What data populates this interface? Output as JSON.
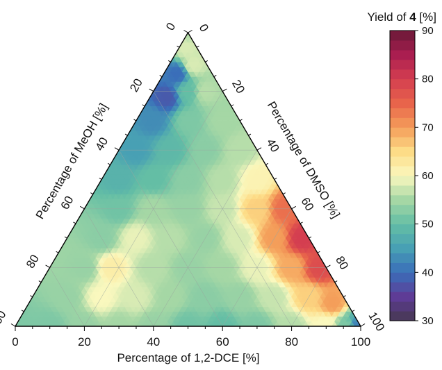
{
  "chart_data": {
    "type": "ternary-contour",
    "axes": {
      "bottom": {
        "label": "Percentage of 1,2-DCE [%]",
        "ticks": [
          "0",
          "20",
          "40",
          "60",
          "80",
          "100"
        ]
      },
      "left": {
        "label": "Percentage of MeOH [%]",
        "ticks": [
          "100",
          "80",
          "60",
          "40",
          "20",
          "0"
        ]
      },
      "right": {
        "label": "Percentage of DMSO [%]",
        "ticks": [
          "100",
          "80",
          "60",
          "40",
          "20",
          "0"
        ]
      }
    },
    "colorbar": {
      "title_prefix": "Yield of ",
      "title_bold": "4",
      "title_suffix": " [%]",
      "min": 30,
      "max": 90,
      "ticks": [
        "90",
        "80",
        "70",
        "60",
        "50",
        "40",
        "30"
      ]
    },
    "gridlines": true,
    "yield_samples": [
      {
        "dce": 0,
        "meoh": 100,
        "dmso": 0,
        "yield": 52
      },
      {
        "dce": 10,
        "meoh": 90,
        "dmso": 0,
        "yield": 52
      },
      {
        "dce": 20,
        "meoh": 80,
        "dmso": 0,
        "yield": 54
      },
      {
        "dce": 30,
        "meoh": 70,
        "dmso": 0,
        "yield": 55
      },
      {
        "dce": 40,
        "meoh": 60,
        "dmso": 0,
        "yield": 54
      },
      {
        "dce": 50,
        "meoh": 50,
        "dmso": 0,
        "yield": 51
      },
      {
        "dce": 60,
        "meoh": 40,
        "dmso": 0,
        "yield": 50
      },
      {
        "dce": 70,
        "meoh": 30,
        "dmso": 0,
        "yield": 52
      },
      {
        "dce": 80,
        "meoh": 20,
        "dmso": 0,
        "yield": 56
      },
      {
        "dce": 90,
        "meoh": 10,
        "dmso": 0,
        "yield": 60
      },
      {
        "dce": 96,
        "meoh": 4,
        "dmso": 0,
        "yield": 52
      },
      {
        "dce": 99,
        "meoh": 1,
        "dmso": 0,
        "yield": 42
      },
      {
        "dce": 10,
        "meoh": 80,
        "dmso": 10,
        "yield": 54
      },
      {
        "dce": 20,
        "meoh": 70,
        "dmso": 10,
        "yield": 60
      },
      {
        "dce": 30,
        "meoh": 60,
        "dmso": 10,
        "yield": 58
      },
      {
        "dce": 40,
        "meoh": 50,
        "dmso": 10,
        "yield": 55
      },
      {
        "dce": 50,
        "meoh": 40,
        "dmso": 10,
        "yield": 53
      },
      {
        "dce": 60,
        "meoh": 30,
        "dmso": 10,
        "yield": 54
      },
      {
        "dce": 70,
        "meoh": 20,
        "dmso": 10,
        "yield": 57
      },
      {
        "dce": 80,
        "meoh": 10,
        "dmso": 10,
        "yield": 66
      },
      {
        "dce": 88,
        "meoh": 4,
        "dmso": 8,
        "yield": 70
      },
      {
        "dce": 10,
        "meoh": 70,
        "dmso": 20,
        "yield": 54
      },
      {
        "dce": 18,
        "meoh": 62,
        "dmso": 20,
        "yield": 62
      },
      {
        "dce": 30,
        "meoh": 50,
        "dmso": 20,
        "yield": 56
      },
      {
        "dce": 40,
        "meoh": 40,
        "dmso": 20,
        "yield": 54
      },
      {
        "dce": 50,
        "meoh": 30,
        "dmso": 20,
        "yield": 55
      },
      {
        "dce": 60,
        "meoh": 20,
        "dmso": 20,
        "yield": 59
      },
      {
        "dce": 70,
        "meoh": 10,
        "dmso": 20,
        "yield": 69
      },
      {
        "dce": 78,
        "meoh": 2,
        "dmso": 20,
        "yield": 78
      },
      {
        "dce": 10,
        "meoh": 60,
        "dmso": 30,
        "yield": 53
      },
      {
        "dce": 20,
        "meoh": 50,
        "dmso": 30,
        "yield": 59
      },
      {
        "dce": 30,
        "meoh": 40,
        "dmso": 30,
        "yield": 56
      },
      {
        "dce": 40,
        "meoh": 30,
        "dmso": 30,
        "yield": 54
      },
      {
        "dce": 50,
        "meoh": 20,
        "dmso": 30,
        "yield": 58
      },
      {
        "dce": 60,
        "meoh": 10,
        "dmso": 30,
        "yield": 70
      },
      {
        "dce": 68,
        "meoh": 2,
        "dmso": 30,
        "yield": 80
      },
      {
        "dce": 10,
        "meoh": 50,
        "dmso": 40,
        "yield": 51
      },
      {
        "dce": 20,
        "meoh": 40,
        "dmso": 40,
        "yield": 55
      },
      {
        "dce": 30,
        "meoh": 30,
        "dmso": 40,
        "yield": 54
      },
      {
        "dce": 40,
        "meoh": 20,
        "dmso": 40,
        "yield": 57
      },
      {
        "dce": 50,
        "meoh": 10,
        "dmso": 40,
        "yield": 66
      },
      {
        "dce": 58,
        "meoh": 2,
        "dmso": 40,
        "yield": 74
      },
      {
        "dce": 5,
        "meoh": 45,
        "dmso": 50,
        "yield": 48
      },
      {
        "dce": 15,
        "meoh": 35,
        "dmso": 50,
        "yield": 50
      },
      {
        "dce": 25,
        "meoh": 25,
        "dmso": 50,
        "yield": 53
      },
      {
        "dce": 35,
        "meoh": 15,
        "dmso": 50,
        "yield": 56
      },
      {
        "dce": 45,
        "meoh": 5,
        "dmso": 50,
        "yield": 61
      },
      {
        "dce": 5,
        "meoh": 35,
        "dmso": 60,
        "yield": 45
      },
      {
        "dce": 15,
        "meoh": 25,
        "dmso": 60,
        "yield": 49
      },
      {
        "dce": 25,
        "meoh": 15,
        "dmso": 60,
        "yield": 53
      },
      {
        "dce": 35,
        "meoh": 5,
        "dmso": 60,
        "yield": 56
      },
      {
        "dce": 5,
        "meoh": 25,
        "dmso": 70,
        "yield": 43
      },
      {
        "dce": 15,
        "meoh": 15,
        "dmso": 70,
        "yield": 52
      },
      {
        "dce": 25,
        "meoh": 5,
        "dmso": 70,
        "yield": 55
      },
      {
        "dce": 5,
        "meoh": 17,
        "dmso": 78,
        "yield": 38
      },
      {
        "dce": 10,
        "meoh": 10,
        "dmso": 80,
        "yield": 50
      },
      {
        "dce": 15,
        "meoh": 5,
        "dmso": 80,
        "yield": 56
      },
      {
        "dce": 4,
        "meoh": 10,
        "dmso": 86,
        "yield": 40
      },
      {
        "dce": 7,
        "meoh": 4,
        "dmso": 89,
        "yield": 58
      },
      {
        "dce": 2,
        "meoh": 3,
        "dmso": 95,
        "yield": 58
      },
      {
        "dce": 0,
        "meoh": 0,
        "dmso": 100,
        "yield": 56
      }
    ]
  }
}
